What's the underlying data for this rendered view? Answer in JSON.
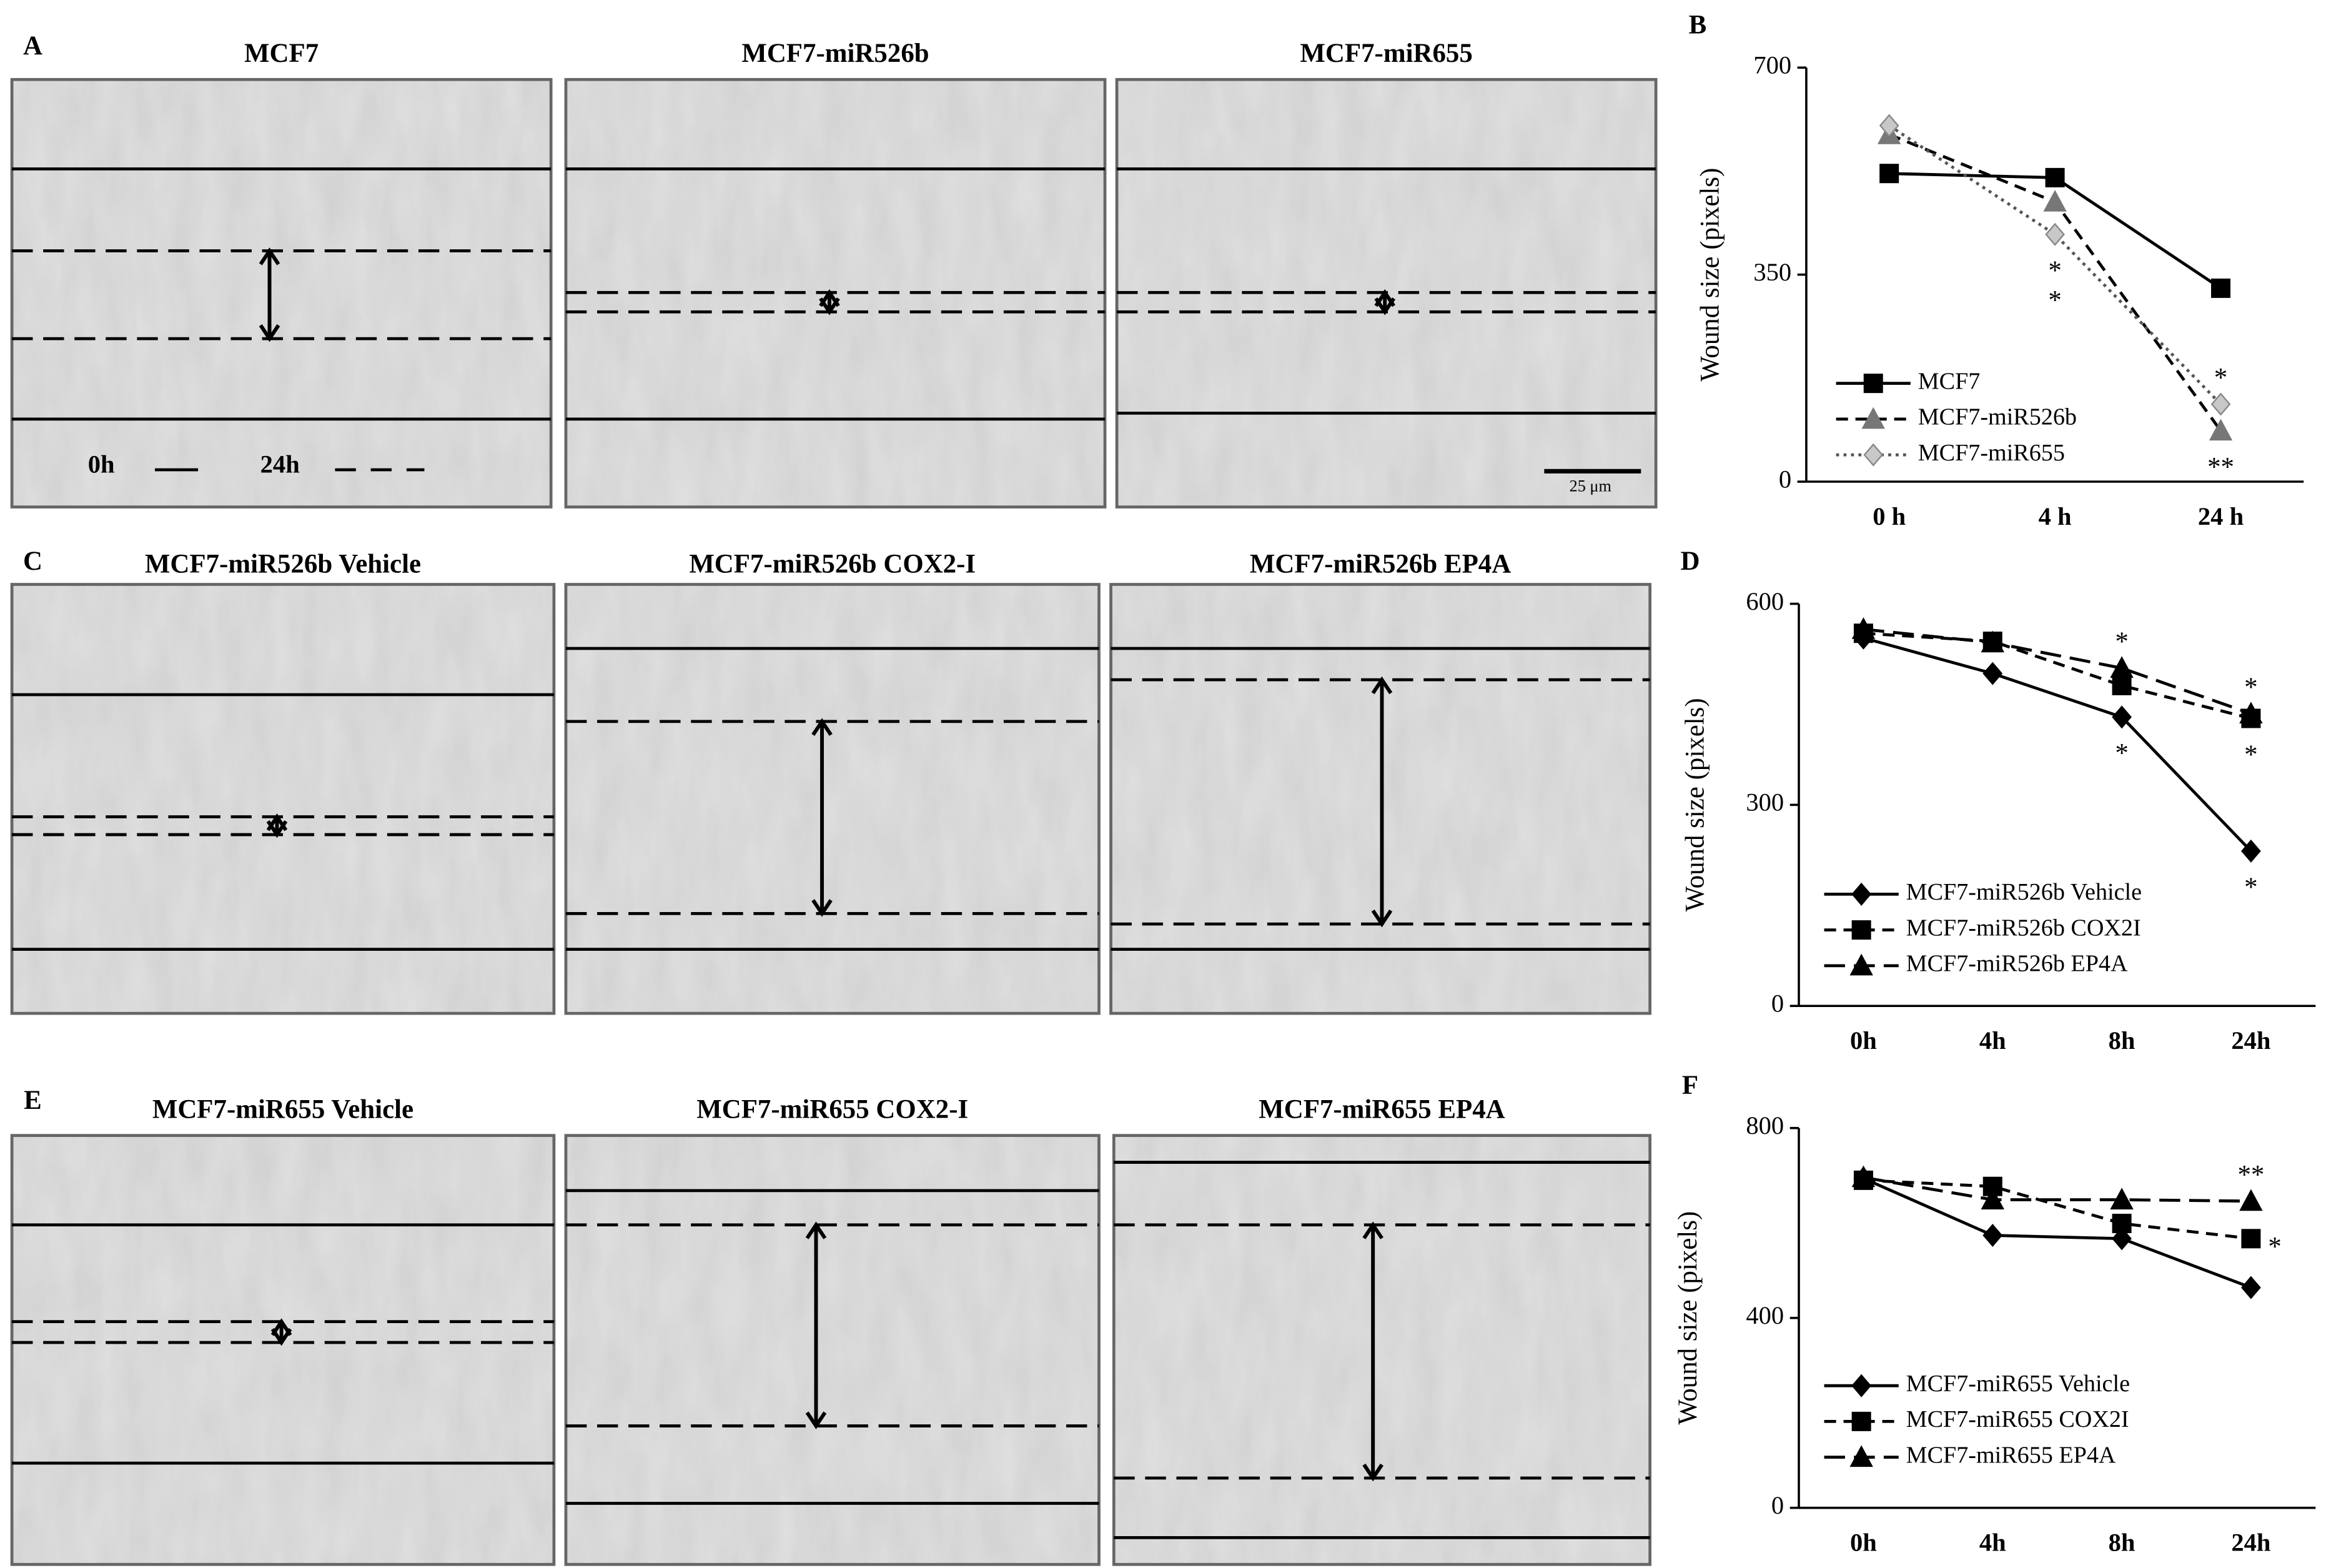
{
  "figure": {
    "rows": [
      {
        "label": "A",
        "images": [
          "MCF7",
          "MCF7-miR526b",
          "MCF7-miR655"
        ]
      },
      {
        "label": "C",
        "images": [
          "MCF7-miR526b  Vehicle",
          "MCF7-miR526b  COX2-I",
          "MCF7-miR526b  EP4A"
        ]
      },
      {
        "label": "E",
        "images": [
          "MCF7-miR655  Vehicle",
          "MCF7-miR655  COX2-I",
          "MCF7-miR655  EP4A"
        ]
      }
    ],
    "key_0h": "0h",
    "key_24h": "24h",
    "scale_bar": "25 μm"
  },
  "chart_data": [
    {
      "type": "line",
      "label": "B",
      "y_label": "Wound size  (pixels)",
      "categories": [
        "0 h",
        "4 h",
        "24 h"
      ],
      "ylim": [
        0,
        700
      ],
      "yticks": [
        0,
        350,
        700
      ],
      "series": [
        {
          "name": "MCF7",
          "color": "#000000",
          "dash": "solid",
          "marker": "square",
          "values": [
            521,
            514,
            327
          ]
        },
        {
          "name": "MCF7-miR526b",
          "color": "#777777",
          "dash": "dashed",
          "marker": "triangle",
          "values": [
            587,
            473,
            86
          ]
        },
        {
          "name": "MCF7-miR655",
          "color": "#c8c8c8",
          "dash": "dotted",
          "marker": "diamond",
          "values": [
            602,
            418,
            131
          ]
        }
      ],
      "annotations": [
        {
          "text": "*",
          "series": 2,
          "category": 1,
          "side": "below"
        },
        {
          "text": "*",
          "series": 2,
          "category": 1,
          "side": "below2"
        },
        {
          "text": "*",
          "series": 2,
          "category": 2,
          "side": "above"
        },
        {
          "text": "**",
          "series": 1,
          "category": 2,
          "side": "below"
        }
      ]
    },
    {
      "type": "line",
      "label": "D",
      "y_label": "Wound size  (pixels)",
      "categories": [
        "0h",
        "4h",
        "8h",
        "24h"
      ],
      "ylim": [
        0,
        600
      ],
      "yticks": [
        0,
        300,
        600
      ],
      "series": [
        {
          "name": "MCF7-miR526b Vehicle",
          "color": "#000000",
          "dash": "solid",
          "marker": "diamond",
          "values": [
            549,
            496,
            431,
            231
          ]
        },
        {
          "name": "MCF7-miR526b COX2I",
          "color": "#000000",
          "dash": "dashed",
          "marker": "square",
          "values": [
            556,
            544,
            478,
            429
          ]
        },
        {
          "name": "MCF7-miR526b EP4A",
          "color": "#000000",
          "dash": "longdash",
          "marker": "triangle",
          "values": [
            562,
            542,
            504,
            436
          ]
        }
      ],
      "annotations": [
        {
          "text": "*",
          "series": 2,
          "category": 2,
          "side": "above"
        },
        {
          "text": "*",
          "series": 0,
          "category": 2,
          "side": "below"
        },
        {
          "text": "*",
          "series": 2,
          "category": 3,
          "side": "above"
        },
        {
          "text": "*",
          "series": 1,
          "category": 3,
          "side": "below"
        },
        {
          "text": "*",
          "series": 0,
          "category": 3,
          "side": "below"
        }
      ]
    },
    {
      "type": "line",
      "label": "F",
      "y_label": "Wound size  (pixels)",
      "categories": [
        "0h",
        "4h",
        "8h",
        "24h"
      ],
      "ylim": [
        0,
        800
      ],
      "yticks": [
        0,
        400,
        800
      ],
      "series": [
        {
          "name": "MCF7-miR655 Vehicle",
          "color": "#000000",
          "dash": "solid",
          "marker": "diamond",
          "values": [
            694,
            574,
            567,
            464
          ]
        },
        {
          "name": "MCF7-miR655 COX2I",
          "color": "#000000",
          "dash": "dashed",
          "marker": "square",
          "values": [
            690,
            677,
            599,
            567
          ]
        },
        {
          "name": "MCF7-miR655 EP4A",
          "color": "#000000",
          "dash": "longdash",
          "marker": "triangle",
          "values": [
            696,
            649,
            649,
            646
          ]
        }
      ],
      "annotations": [
        {
          "text": "**",
          "series": 2,
          "category": 3,
          "side": "above"
        },
        {
          "text": "*",
          "series": 1,
          "category": 3,
          "side": "right"
        }
      ]
    }
  ]
}
